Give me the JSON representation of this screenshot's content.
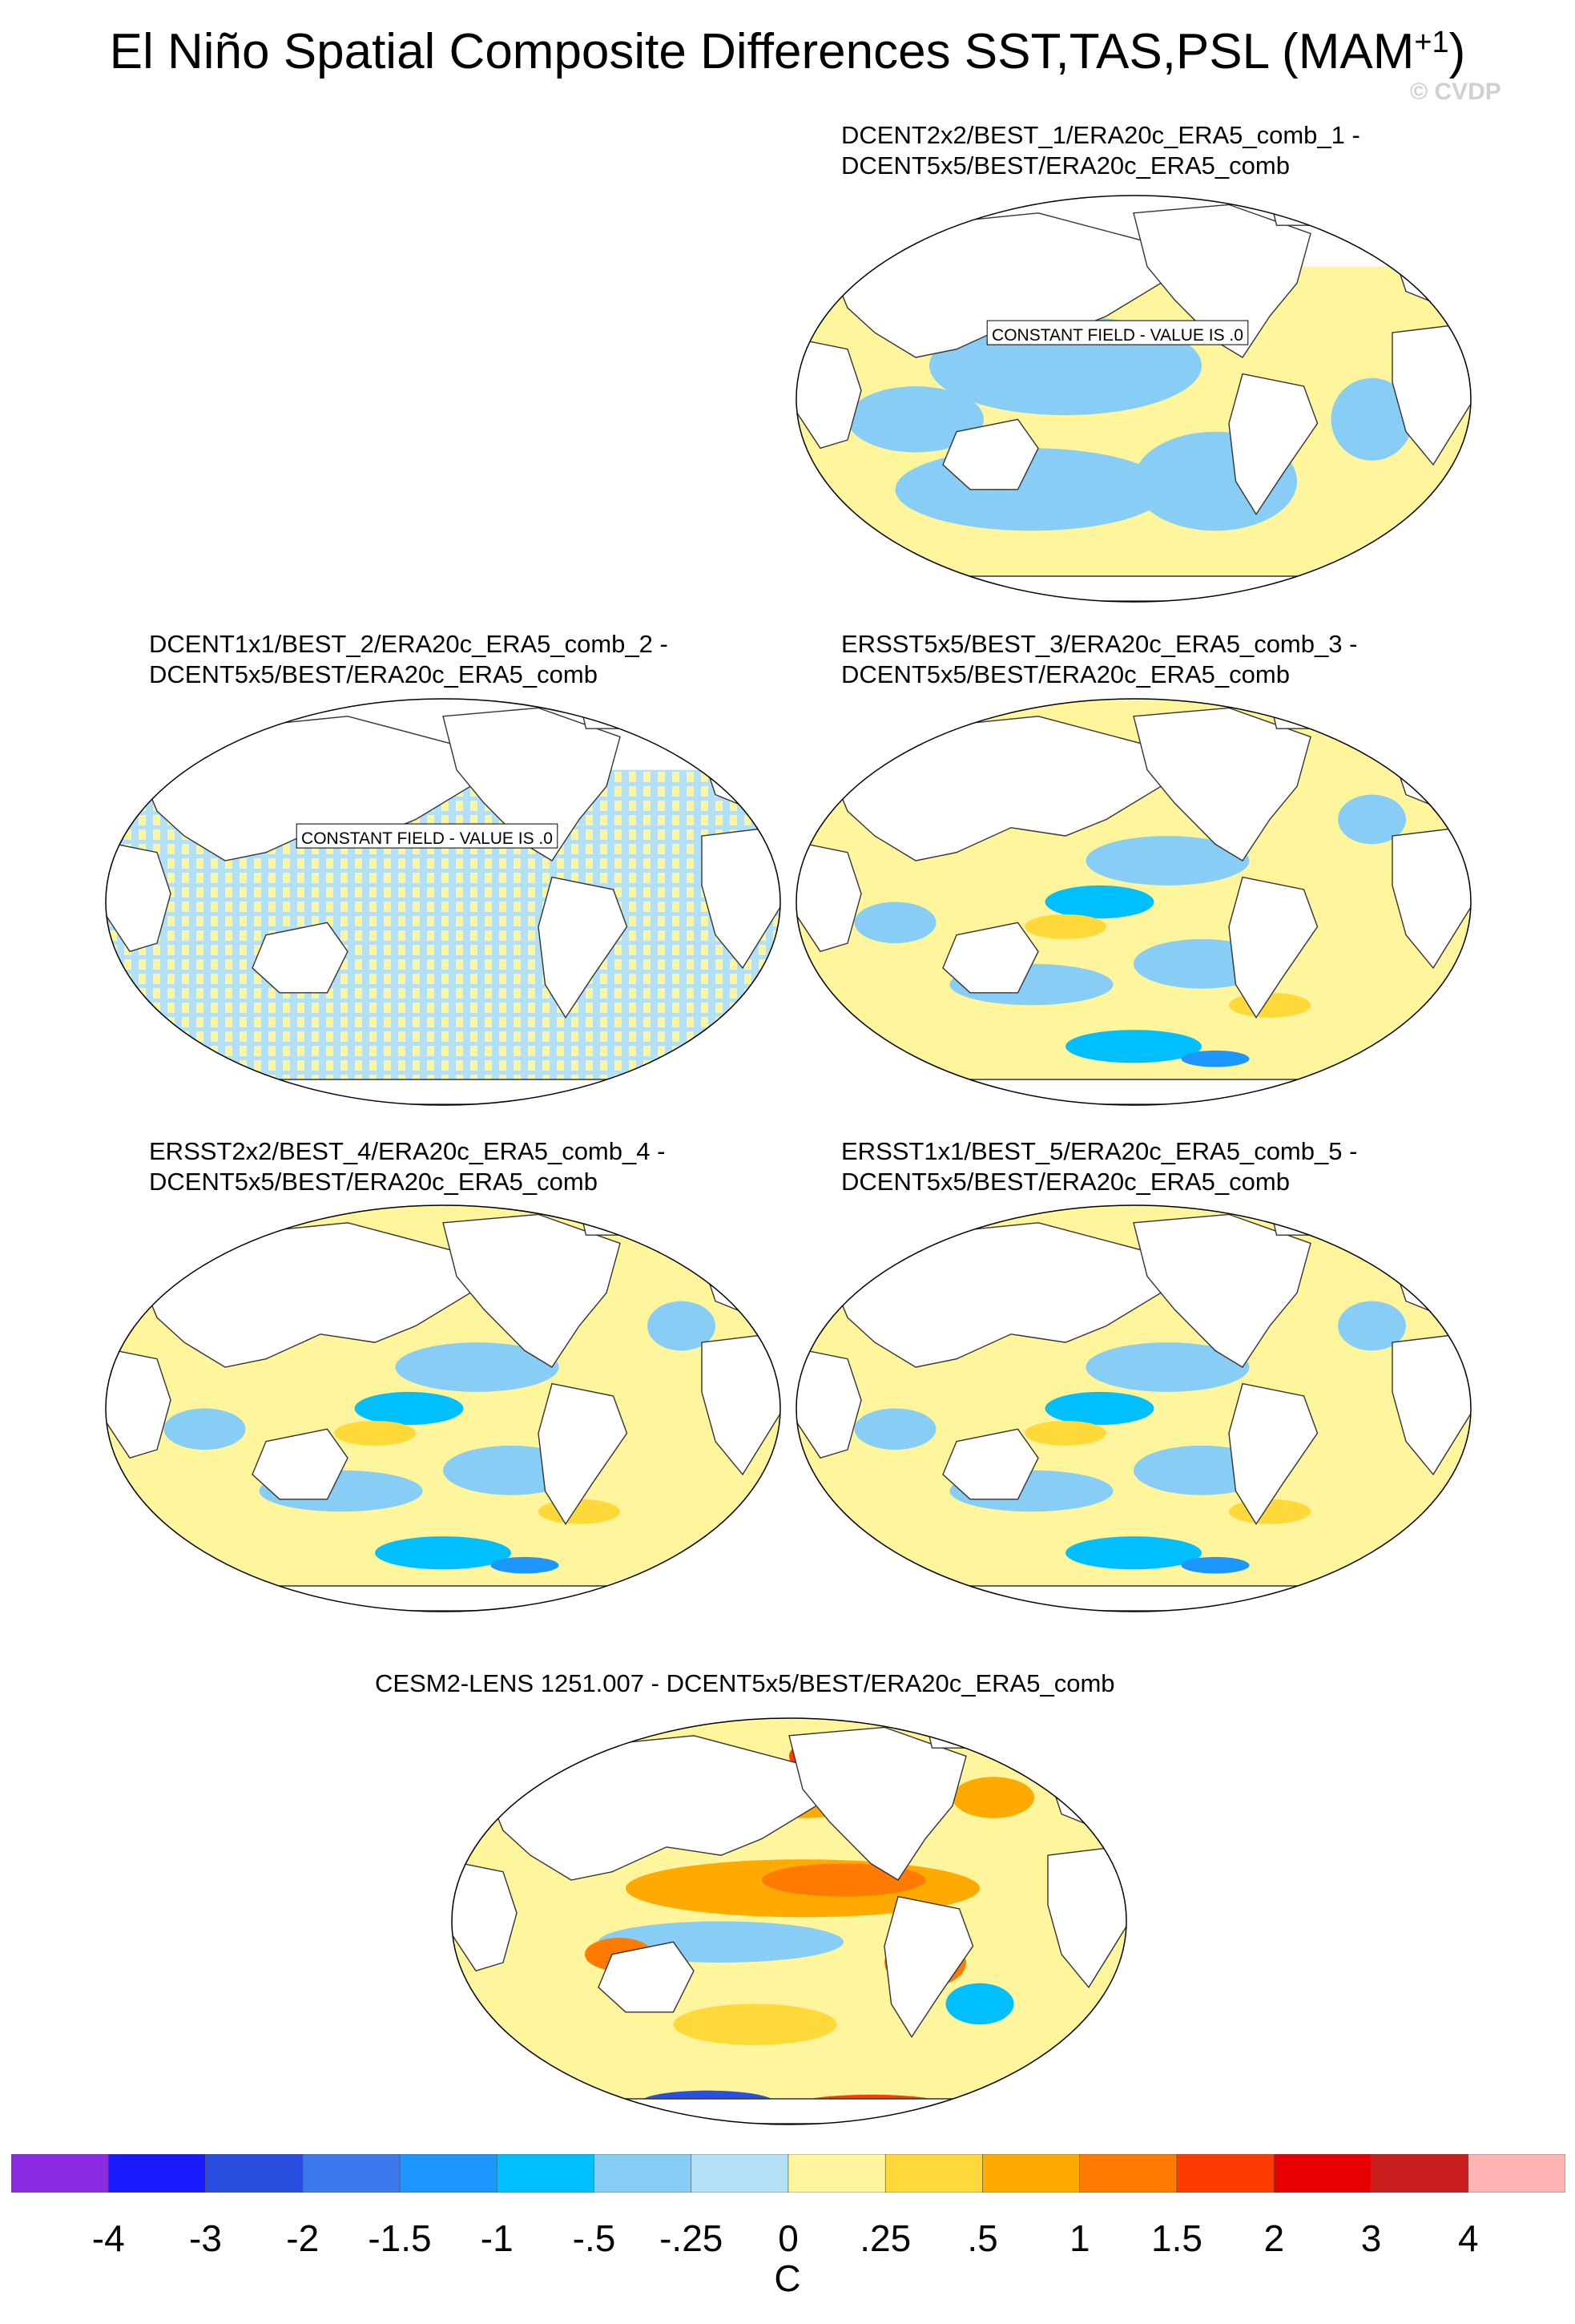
{
  "title": {
    "text": "El Niño Spatial Composite Differences SST,TAS,PSL (MAM",
    "sup": "+1",
    "close": ")"
  },
  "watermark": "© CVDP",
  "panels": [
    {
      "line1": "DCENT2x2/BEST_1/ERA20c_ERA5_comb_1 -",
      "line2": "DCENT5x5/BEST/ERA20c_ERA5_comb",
      "constant_label": "CONSTANT FIELD - VALUE IS .0",
      "pattern": "blocky"
    },
    {
      "line1": "DCENT1x1/BEST_2/ERA20c_ERA5_comb_2 -",
      "line2": "DCENT5x5/BEST/ERA20c_ERA5_comb",
      "constant_label": "CONSTANT FIELD - VALUE IS .0",
      "pattern": "stripes"
    },
    {
      "line1": "ERSST5x5/BEST_3/ERA20c_ERA5_comb_3 -",
      "line2": "DCENT5x5/BEST/ERA20c_ERA5_comb",
      "constant_label": "",
      "pattern": "weak"
    },
    {
      "line1": "ERSST2x2/BEST_4/ERA20c_ERA5_comb_4 -",
      "line2": "DCENT5x5/BEST/ERA20c_ERA5_comb",
      "constant_label": "",
      "pattern": "weak"
    },
    {
      "line1": "ERSST1x1/BEST_5/ERA20c_ERA5_comb_5 -",
      "line2": "DCENT5x5/BEST/ERA20c_ERA5_comb",
      "constant_label": "",
      "pattern": "weak"
    },
    {
      "line1": "CESM2-LENS 1251.007 - DCENT5x5/BEST/ERA20c_ERA5_comb",
      "line2": "",
      "constant_label": "",
      "pattern": "strong"
    }
  ],
  "colorbar": {
    "colors": [
      "#8a2be2",
      "#1a1aff",
      "#2a4fe0",
      "#3a78ee",
      "#1e96ff",
      "#00bfff",
      "#87cdf5",
      "#b4e0f5",
      "#fff59c",
      "#ffd83a",
      "#ffaa00",
      "#ff7a00",
      "#ff3c00",
      "#e60000",
      "#c81e1e",
      "#ffb4b4"
    ],
    "tick_labels": [
      "-4",
      "-3",
      "-2",
      "-1.5",
      "-1",
      "-.5",
      "-.25",
      "0",
      ".25",
      ".5",
      "1",
      "1.5",
      "2",
      "3",
      "4"
    ],
    "units": "C"
  }
}
